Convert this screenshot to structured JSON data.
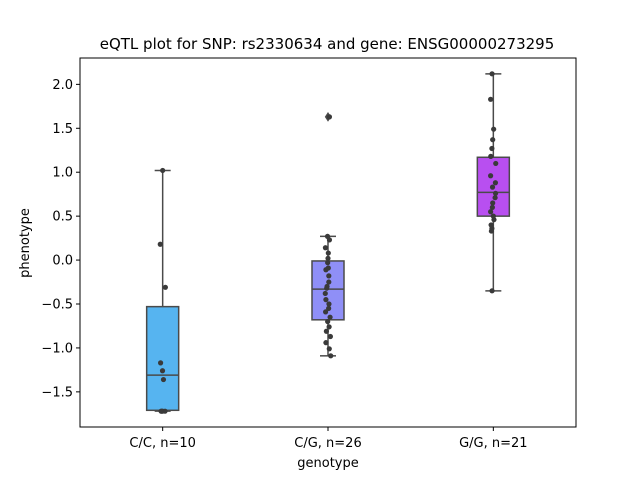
{
  "chart_data": {
    "type": "box",
    "title": "eQTL plot for SNP: rs2330634 and gene: ENSG00000273295",
    "xlabel": "genotype",
    "ylabel": "phenotype",
    "ylim": [
      -1.9,
      2.3
    ],
    "yticks": [
      -1.5,
      -1.0,
      -0.5,
      0.0,
      0.5,
      1.0,
      1.5,
      2.0
    ],
    "ytick_labels": [
      "−1.5",
      "−1.0",
      "−0.5",
      "0.0",
      "0.5",
      "1.0",
      "1.5",
      "2.0"
    ],
    "grid": false,
    "categories": [
      "C/C, n=10",
      "C/G, n=26",
      "G/G, n=21"
    ],
    "boxes": [
      {
        "category": "C/C, n=10",
        "color": "#56b4f0",
        "whisker_low": -1.72,
        "q1": -1.71,
        "median": -1.31,
        "q3": -0.53,
        "whisker_high": 1.02,
        "outliers": [],
        "points": [
          {
            "x": -0.15,
            "y": 0.18
          },
          {
            "x": 0.0,
            "y": 1.02
          },
          {
            "x": 0.17,
            "y": -0.31
          },
          {
            "x": -0.13,
            "y": -1.17
          },
          {
            "x": -0.01,
            "y": -1.26
          },
          {
            "x": 0.05,
            "y": -1.36
          },
          {
            "x": -0.06,
            "y": -1.72
          },
          {
            "x": 0.0,
            "y": -1.72
          },
          {
            "x": 0.15,
            "y": -1.72
          },
          {
            "x": -0.1,
            "y": -1.72
          }
        ]
      },
      {
        "category": "C/G, n=26",
        "color": "#8f8ff7",
        "whisker_low": -1.09,
        "q1": -0.68,
        "median": -0.33,
        "q3": -0.01,
        "whisker_high": 0.27,
        "outliers": [
          1.63
        ],
        "points": [
          {
            "x": 0.09,
            "y": 1.63
          },
          {
            "x": -0.03,
            "y": 0.27
          },
          {
            "x": 0.09,
            "y": 0.23
          },
          {
            "x": -0.16,
            "y": 0.14
          },
          {
            "x": 0.02,
            "y": 0.08
          },
          {
            "x": 0.0,
            "y": 0.02
          },
          {
            "x": -0.02,
            "y": -0.03
          },
          {
            "x": 0.02,
            "y": -0.09
          },
          {
            "x": -0.13,
            "y": -0.11
          },
          {
            "x": 0.05,
            "y": -0.18
          },
          {
            "x": 0.05,
            "y": -0.25
          },
          {
            "x": -0.08,
            "y": -0.32
          },
          {
            "x": -0.17,
            "y": -0.38
          },
          {
            "x": -0.13,
            "y": -0.45
          },
          {
            "x": 0.06,
            "y": -0.5
          },
          {
            "x": 0.04,
            "y": -0.55
          },
          {
            "x": -0.15,
            "y": -0.59
          },
          {
            "x": 0.13,
            "y": -0.65
          },
          {
            "x": -0.02,
            "y": -0.7
          },
          {
            "x": 0.07,
            "y": -0.76
          },
          {
            "x": -0.1,
            "y": -0.81
          },
          {
            "x": 0.15,
            "y": -0.87
          },
          {
            "x": -0.13,
            "y": -0.94
          },
          {
            "x": 0.08,
            "y": -1.01
          },
          {
            "x": 0.17,
            "y": -1.09
          },
          {
            "x": -0.06,
            "y": -0.3
          }
        ]
      },
      {
        "category": "G/G, n=21",
        "color": "#b84ff0",
        "whisker_low": -0.35,
        "q1": 0.5,
        "median": 0.77,
        "q3": 1.17,
        "whisker_high": 2.12,
        "outliers": [],
        "points": [
          {
            "x": -0.08,
            "y": 2.12
          },
          {
            "x": -0.17,
            "y": 1.83
          },
          {
            "x": 0.02,
            "y": 1.49
          },
          {
            "x": -0.04,
            "y": 1.37
          },
          {
            "x": -0.09,
            "y": 1.27
          },
          {
            "x": -0.16,
            "y": 1.18
          },
          {
            "x": 0.15,
            "y": 1.1
          },
          {
            "x": -0.17,
            "y": 0.96
          },
          {
            "x": 0.13,
            "y": 0.88
          },
          {
            "x": -0.05,
            "y": 0.83
          },
          {
            "x": 0.14,
            "y": 0.76
          },
          {
            "x": 0.11,
            "y": 0.71
          },
          {
            "x": -0.04,
            "y": 0.65
          },
          {
            "x": -0.06,
            "y": 0.6
          },
          {
            "x": -0.17,
            "y": 0.55
          },
          {
            "x": 0.04,
            "y": 0.46
          },
          {
            "x": -0.14,
            "y": 0.4
          },
          {
            "x": -0.12,
            "y": 0.33
          },
          {
            "x": -0.09,
            "y": 0.36
          },
          {
            "x": -0.08,
            "y": -0.35
          },
          {
            "x": 0.0,
            "y": 0.5
          }
        ]
      }
    ]
  }
}
